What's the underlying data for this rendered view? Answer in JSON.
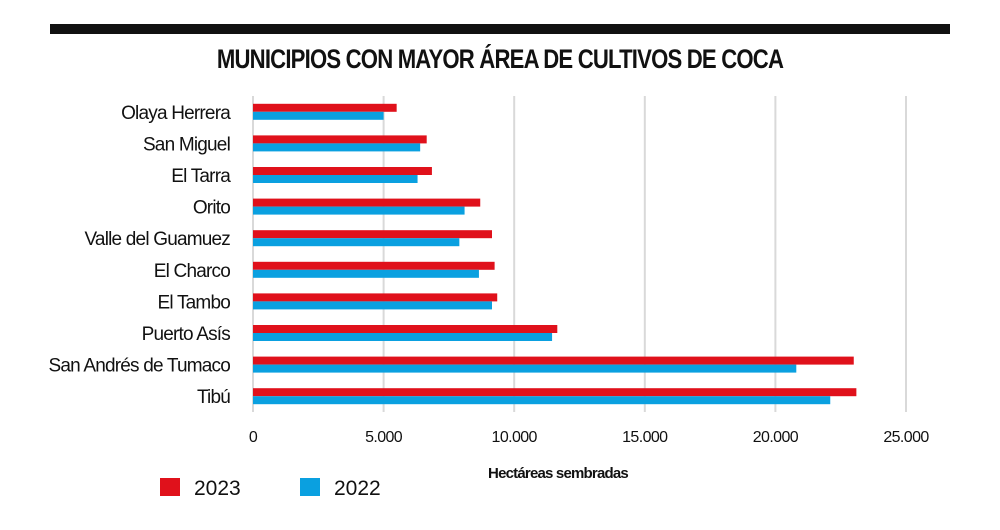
{
  "chart_data": {
    "type": "bar",
    "orientation": "horizontal",
    "title": "MUNICIPIOS CON MAYOR ÁREA DE CULTIVOS DE COCA",
    "xlabel": "Hectáreas sembradas",
    "ylabel": "",
    "xlim": [
      0,
      25000
    ],
    "xticks": [
      0,
      5000,
      10000,
      15000,
      20000,
      25000
    ],
    "xtick_labels": [
      "0",
      "5.000",
      "10.000",
      "15.000",
      "20.000",
      "25.000"
    ],
    "grid": "vertical",
    "legend_placement": "bottom-left",
    "categories": [
      "Olaya Herrera",
      "San Miguel",
      "El Tarra",
      "Orito",
      "Valle del Guamuez",
      "El Charco",
      "El Tambo",
      "Puerto Asís",
      "San Andrés de Tumaco",
      "Tibú"
    ],
    "series": [
      {
        "name": "2023",
        "color": "#e0111b",
        "values": [
          5500,
          6650,
          6850,
          8700,
          9150,
          9250,
          9350,
          11650,
          23000,
          23100
        ]
      },
      {
        "name": "2022",
        "color": "#0aa0e0",
        "values": [
          5000,
          6400,
          6300,
          8100,
          7900,
          8650,
          9150,
          11450,
          20800,
          22100
        ]
      }
    ]
  }
}
